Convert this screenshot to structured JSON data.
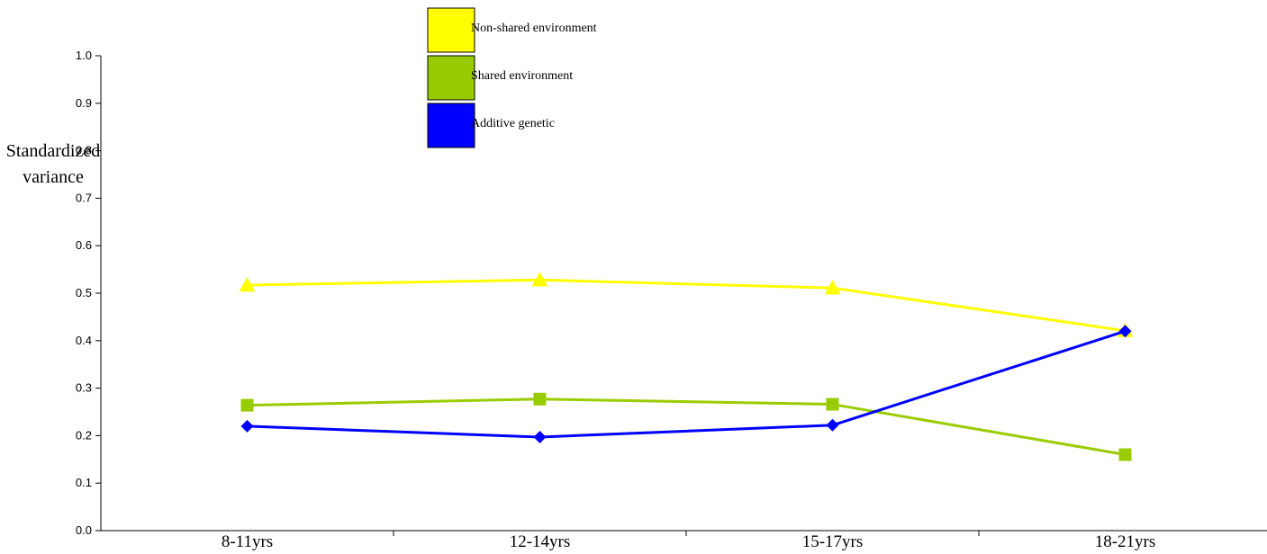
{
  "chart_data": {
    "type": "line",
    "title": "",
    "xlabel": "",
    "ylabel": "Standardized variance",
    "ylim": [
      0,
      1
    ],
    "yticks": [
      "0.0",
      "0.1",
      "0.2",
      "0.3",
      "0.4",
      "0.5",
      "0.6",
      "0.7",
      "0.8",
      "0.9",
      "1.0"
    ],
    "categories": [
      "8-11yrs",
      "12-14yrs",
      "15-17yrs",
      "18-21yrs"
    ],
    "legend_position": "top-center",
    "series": [
      {
        "name": "Non-shared environment",
        "color": "#ffff00",
        "marker": "triangle",
        "values": [
          0.517,
          0.528,
          0.511,
          0.421
        ]
      },
      {
        "name": "Shared environment",
        "color": "#99cc00",
        "marker": "square",
        "values": [
          0.264,
          0.277,
          0.266,
          0.16
        ]
      },
      {
        "name": "Additive genetic",
        "color": "#0000ff",
        "marker": "diamond",
        "values": [
          0.22,
          0.197,
          0.222,
          0.42
        ]
      }
    ]
  }
}
